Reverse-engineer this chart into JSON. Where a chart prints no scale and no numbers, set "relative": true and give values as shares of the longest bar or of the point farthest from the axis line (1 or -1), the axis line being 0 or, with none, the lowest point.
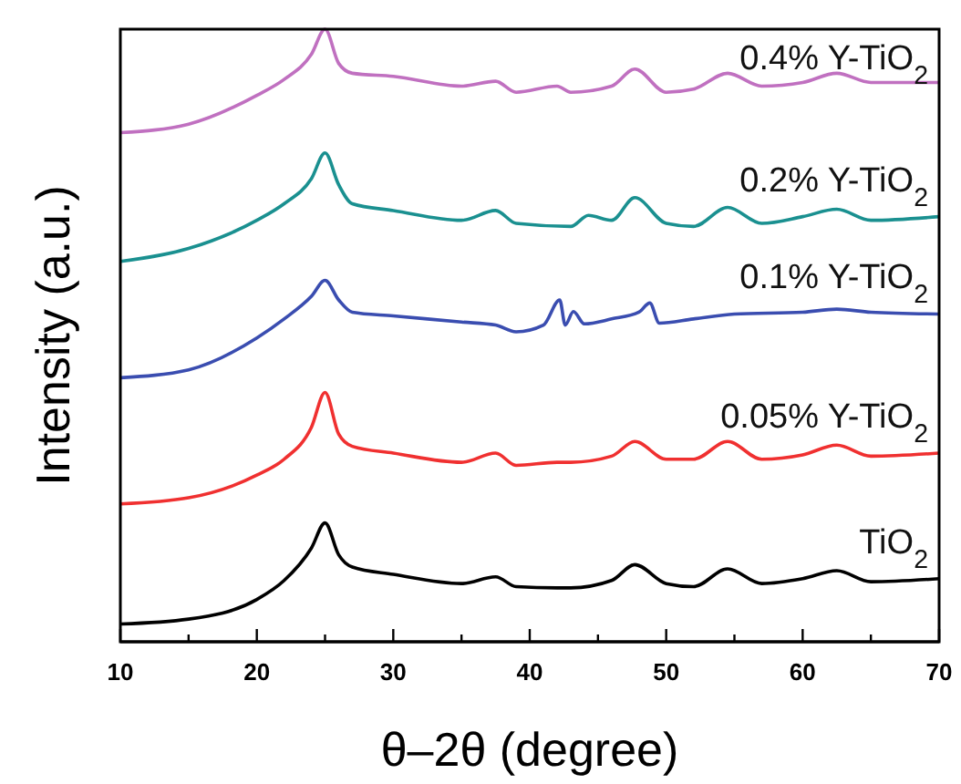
{
  "chart_data": {
    "type": "line",
    "relative": true,
    "xlabel": "θ–2θ (degree)",
    "ylabel": "Intensity (a.u.)",
    "xlim": [
      10,
      70
    ],
    "xticks": [
      10,
      {
        "value": 15,
        "label": null
      },
      20,
      {
        "value": 25,
        "label": null
      },
      30,
      {
        "value": 35,
        "label": null
      },
      40,
      {
        "value": 45,
        "label": null
      },
      50,
      {
        "value": 55,
        "label": null
      },
      60,
      {
        "value": 65,
        "label": null
      },
      70
    ],
    "grid": false,
    "marker": "none",
    "line_style": "solid",
    "x": [
      10,
      15,
      20,
      22,
      24,
      25,
      26,
      27,
      30,
      35,
      37.5,
      39,
      42,
      43,
      46,
      47.7,
      50,
      52,
      54.5,
      57,
      60,
      62.5,
      65,
      70
    ],
    "series": [
      {
        "name": "TiO$_{2}$",
        "color": "#000000",
        "values": [
          0.029,
          0.037,
          0.069,
          0.1,
          0.153,
          0.194,
          0.142,
          0.122,
          0.11,
          0.095,
          0.106,
          0.09,
          0.088,
          0.088,
          0.1,
          0.126,
          0.095,
          0.09,
          0.119,
          0.095,
          0.103,
          0.116,
          0.098,
          0.103
        ]
      },
      {
        "name": "0.05% Y-TiO$_{2}$",
        "color": "#f03030",
        "values": [
          0.225,
          0.235,
          0.272,
          0.298,
          0.35,
          0.407,
          0.339,
          0.319,
          0.308,
          0.293,
          0.308,
          0.288,
          0.293,
          0.293,
          0.303,
          0.327,
          0.298,
          0.298,
          0.327,
          0.298,
          0.305,
          0.321,
          0.303,
          0.308
        ]
      },
      {
        "name": "0.1% Y-TiO$_{2}$",
        "color": "#3a4db0",
        "x": [
          10,
          15,
          20,
          22,
          24,
          25,
          26,
          27,
          30,
          35,
          37.5,
          39,
          41,
          42.2,
          42.6,
          43.2,
          44,
          46,
          48,
          48.8,
          49.5,
          52,
          55,
          60,
          62.5,
          65,
          70
        ],
        "values": [
          0.431,
          0.444,
          0.496,
          0.527,
          0.564,
          0.59,
          0.558,
          0.538,
          0.532,
          0.522,
          0.517,
          0.506,
          0.517,
          0.558,
          0.517,
          0.539,
          0.519,
          0.527,
          0.538,
          0.553,
          0.52,
          0.527,
          0.535,
          0.538,
          0.543,
          0.538,
          0.535
        ]
      },
      {
        "name": "0.2% Y-TiO$_{2}$",
        "color": "#1a9090",
        "x": [
          10,
          15,
          20,
          22,
          24,
          25,
          26,
          27,
          30,
          35,
          37.5,
          39,
          43,
          44.3,
          46,
          47.7,
          50,
          52,
          54.5,
          57,
          60,
          62.5,
          65,
          70
        ],
        "values": [
          0.621,
          0.642,
          0.688,
          0.715,
          0.756,
          0.798,
          0.746,
          0.715,
          0.704,
          0.688,
          0.704,
          0.683,
          0.678,
          0.696,
          0.688,
          0.725,
          0.683,
          0.678,
          0.709,
          0.683,
          0.694,
          0.706,
          0.688,
          0.694
        ]
      },
      {
        "name": "0.4% Y-TiO$_{2}$",
        "color": "#c070c0",
        "values": [
          0.831,
          0.845,
          0.892,
          0.918,
          0.959,
          1.0,
          0.944,
          0.928,
          0.923,
          0.907,
          0.915,
          0.897,
          0.907,
          0.897,
          0.907,
          0.935,
          0.897,
          0.902,
          0.928,
          0.907,
          0.913,
          0.928,
          0.913,
          0.913
        ]
      }
    ]
  }
}
